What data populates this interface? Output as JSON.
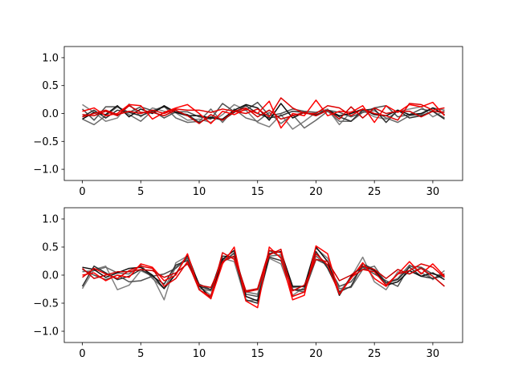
{
  "figure": {
    "background": "#ffffff"
  },
  "chart_data": [
    {
      "type": "line",
      "xlim": [
        -1.55,
        32.55
      ],
      "ylim": [
        -1.2,
        1.2
      ],
      "xticks": [
        0,
        5,
        10,
        15,
        20,
        25,
        30
      ],
      "yticks": [
        -1.0,
        -0.5,
        0.0,
        0.5,
        1.0
      ],
      "xtick_labels": [
        "0",
        "5",
        "10",
        "15",
        "20",
        "25",
        "30"
      ],
      "ytick_labels": [
        "−1.0",
        "−0.5",
        "0.0",
        "0.5",
        "1.0"
      ],
      "grid": false,
      "series": [
        {
          "color": "#808080",
          "values": [
            0.16,
            0.02,
            -0.14,
            -0.08,
            0.17,
            -0.06,
            0.1,
            0.04,
            0.01,
            -0.12,
            -0.1,
            -0.16,
            -0.02,
            0.16,
            0.06,
            -0.16,
            -0.24,
            -0.02,
            -0.28,
            -0.14,
            0.02,
            0.08,
            -0.2,
            0.03,
            0.05,
            -0.06,
            -0.1,
            0.04,
            0.08,
            0.12,
            -0.06,
            0.05
          ]
        },
        {
          "color": "#696969",
          "values": [
            -0.1,
            -0.2,
            -0.04,
            0.12,
            -0.02,
            -0.14,
            0.05,
            0.13,
            -0.08,
            -0.16,
            -0.14,
            0.08,
            -0.16,
            0.08,
            -0.08,
            -0.14,
            0.02,
            -0.18,
            -0.02,
            -0.26,
            -0.12,
            0.04,
            -0.14,
            -0.14,
            0.02,
            0.05,
            -0.08,
            -0.16,
            -0.04,
            -0.02,
            0.1,
            0.06
          ]
        },
        {
          "color": "#505050",
          "values": [
            0.08,
            -0.12,
            0.12,
            0.12,
            0.02,
            0.12,
            0.05,
            -0.08,
            0.03,
            0.03,
            -0.06,
            -0.1,
            0.18,
            0.03,
            0.06,
            0.2,
            -0.04,
            0.0,
            0.08,
            0.04,
            0.02,
            0.06,
            0.02,
            -0.06,
            0.02,
            0.1,
            0.14,
            -0.06,
            -0.02,
            0.08,
            0.04,
            -0.08
          ]
        },
        {
          "color": "#303030",
          "values": [
            -0.06,
            0.06,
            -0.08,
            0.06,
            0.02,
            -0.04,
            0.04,
            0.12,
            0.02,
            -0.02,
            -0.16,
            -0.06,
            -0.12,
            0.02,
            0.14,
            0.0,
            -0.08,
            -0.04,
            0.04,
            0.02,
            -0.02,
            0.06,
            -0.06,
            -0.14,
            0.06,
            0.08,
            -0.16,
            0.06,
            -0.08,
            -0.04,
            0.04,
            -0.1
          ]
        },
        {
          "color": "#101010",
          "values": [
            -0.1,
            0.02,
            -0.02,
            0.14,
            -0.06,
            0.08,
            0.0,
            0.14,
            0.02,
            -0.04,
            -0.04,
            -0.08,
            -0.1,
            0.06,
            0.16,
            0.1,
            -0.12,
            0.18,
            -0.08,
            0.02,
            -0.04,
            0.06,
            -0.04,
            0.0,
            0.08,
            -0.02,
            -0.04,
            0.06,
            -0.02,
            0.0,
            0.1,
            -0.02
          ]
        },
        {
          "color": "#ff0000",
          "values": [
            0.04,
            0.1,
            -0.04,
            0.0,
            0.16,
            0.14,
            -0.1,
            0.02,
            0.1,
            0.16,
            0.0,
            -0.18,
            0.04,
            -0.02,
            0.08,
            0.0,
            0.22,
            -0.26,
            0.0,
            -0.04,
            0.24,
            -0.04,
            0.04,
            0.02,
            0.14,
            -0.16,
            0.14,
            0.02,
            0.16,
            0.12,
            0.2,
            -0.04
          ]
        },
        {
          "color": "#e00000",
          "values": [
            -0.06,
            0.0,
            0.06,
            -0.02,
            0.04,
            0.0,
            0.06,
            0.0,
            0.08,
            0.06,
            0.06,
            0.02,
            0.08,
            0.04,
            0.0,
            0.08,
            -0.06,
            0.28,
            0.1,
            0.0,
            0.0,
            0.14,
            0.1,
            -0.04,
            0.08,
            0.0,
            -0.04,
            -0.12,
            0.18,
            0.16,
            0.06,
            0.1
          ]
        },
        {
          "color": "#cc0000",
          "values": [
            -0.02,
            -0.04,
            0.04,
            -0.04,
            0.14,
            0.02,
            0.02,
            -0.04,
            0.06,
            -0.04,
            -0.18,
            -0.02,
            -0.12,
            0.04,
            0.1,
            -0.06,
            0.06,
            -0.1,
            -0.04,
            0.02,
            -0.04,
            0.06,
            -0.1,
            0.12,
            -0.08,
            0.1,
            0.0,
            0.04,
            0.04,
            -0.06,
            0.04,
            0.02
          ]
        }
      ]
    },
    {
      "type": "line",
      "xlim": [
        -1.55,
        32.55
      ],
      "ylim": [
        -1.2,
        1.2
      ],
      "xticks": [
        0,
        5,
        10,
        15,
        20,
        25,
        30
      ],
      "yticks": [
        -1.0,
        -0.5,
        0.0,
        0.5,
        1.0
      ],
      "xtick_labels": [
        "0",
        "5",
        "10",
        "15",
        "20",
        "25",
        "30"
      ],
      "ytick_labels": [
        "−1.0",
        "−0.5",
        "0.0",
        "0.5",
        "1.0"
      ],
      "grid": false,
      "series": [
        {
          "color": "#808080",
          "values": [
            -0.24,
            0.1,
            0.16,
            -0.26,
            -0.18,
            0.08,
            -0.02,
            -0.44,
            0.22,
            0.34,
            -0.2,
            -0.36,
            0.3,
            0.24,
            -0.46,
            -0.44,
            0.3,
            0.2,
            -0.36,
            -0.22,
            0.48,
            0.3,
            -0.3,
            -0.04,
            0.32,
            -0.12,
            -0.26,
            0.06,
            0.02,
            0.14,
            -0.08,
            0.08
          ]
        },
        {
          "color": "#696969",
          "values": [
            0.06,
            0.08,
            0.14,
            0.04,
            0.02,
            0.18,
            -0.06,
            -0.24,
            0.14,
            0.32,
            -0.24,
            -0.28,
            0.26,
            0.38,
            -0.3,
            -0.34,
            0.34,
            0.36,
            -0.22,
            -0.2,
            0.34,
            0.16,
            -0.24,
            -0.22,
            0.1,
            0.16,
            -0.14,
            -0.06,
            0.18,
            0.04,
            -0.06,
            -0.02
          ]
        },
        {
          "color": "#505050",
          "values": [
            0.1,
            0.0,
            -0.08,
            0.0,
            -0.12,
            -0.1,
            -0.02,
            0.02,
            0.12,
            0.3,
            -0.16,
            -0.26,
            0.22,
            0.4,
            -0.34,
            -0.38,
            0.44,
            0.32,
            -0.26,
            -0.3,
            0.28,
            0.18,
            -0.2,
            -0.12,
            0.14,
            0.02,
            -0.1,
            -0.2,
            0.16,
            0.14,
            0.02,
            -0.02
          ]
        },
        {
          "color": "#303030",
          "values": [
            -0.2,
            0.16,
            0.04,
            -0.08,
            -0.02,
            0.1,
            -0.02,
            -0.16,
            0.18,
            0.26,
            -0.2,
            -0.26,
            0.34,
            0.32,
            -0.44,
            -0.5,
            0.32,
            0.26,
            -0.26,
            -0.26,
            0.42,
            0.12,
            -0.3,
            -0.2,
            0.2,
            0.1,
            -0.14,
            -0.08,
            0.14,
            -0.02,
            -0.06,
            0.02
          ]
        },
        {
          "color": "#101010",
          "values": [
            0.14,
            0.1,
            -0.04,
            0.04,
            0.12,
            0.14,
            0.0,
            -0.24,
            0.02,
            0.36,
            -0.18,
            -0.42,
            0.28,
            0.44,
            -0.38,
            -0.46,
            0.38,
            0.42,
            -0.2,
            -0.2,
            0.5,
            0.24,
            -0.36,
            -0.02,
            0.16,
            0.08,
            -0.18,
            -0.12,
            0.08,
            -0.02,
            0.04,
            -0.08
          ]
        },
        {
          "color": "#ff0000",
          "values": [
            0.0,
            0.04,
            -0.1,
            0.0,
            -0.04,
            0.2,
            0.14,
            -0.1,
            0.0,
            0.38,
            -0.26,
            -0.42,
            0.2,
            0.5,
            -0.46,
            -0.58,
            0.5,
            0.3,
            -0.44,
            -0.36,
            0.52,
            0.38,
            -0.34,
            -0.06,
            0.22,
            -0.06,
            -0.2,
            0.02,
            0.24,
            0.02,
            0.2,
            -0.02
          ]
        },
        {
          "color": "#e00000",
          "values": [
            -0.04,
            0.12,
            0.02,
            -0.06,
            0.08,
            0.16,
            0.12,
            -0.2,
            -0.06,
            0.24,
            -0.26,
            -0.38,
            0.4,
            0.28,
            -0.3,
            -0.26,
            0.36,
            0.46,
            -0.38,
            -0.3,
            0.38,
            0.18,
            -0.34,
            -0.04,
            0.1,
            0.06,
            -0.18,
            0.02,
            0.08,
            0.2,
            0.14,
            -0.04
          ]
        },
        {
          "color": "#cc0000",
          "values": [
            0.12,
            -0.06,
            0.0,
            0.06,
            0.06,
            0.1,
            0.08,
            -0.04,
            0.04,
            0.2,
            -0.18,
            -0.22,
            0.24,
            0.34,
            -0.28,
            -0.24,
            0.44,
            0.4,
            -0.28,
            -0.18,
            0.28,
            0.24,
            -0.1,
            0.0,
            0.16,
            0.1,
            -0.06,
            0.1,
            0.02,
            0.12,
            -0.02,
            -0.2
          ]
        }
      ]
    }
  ]
}
